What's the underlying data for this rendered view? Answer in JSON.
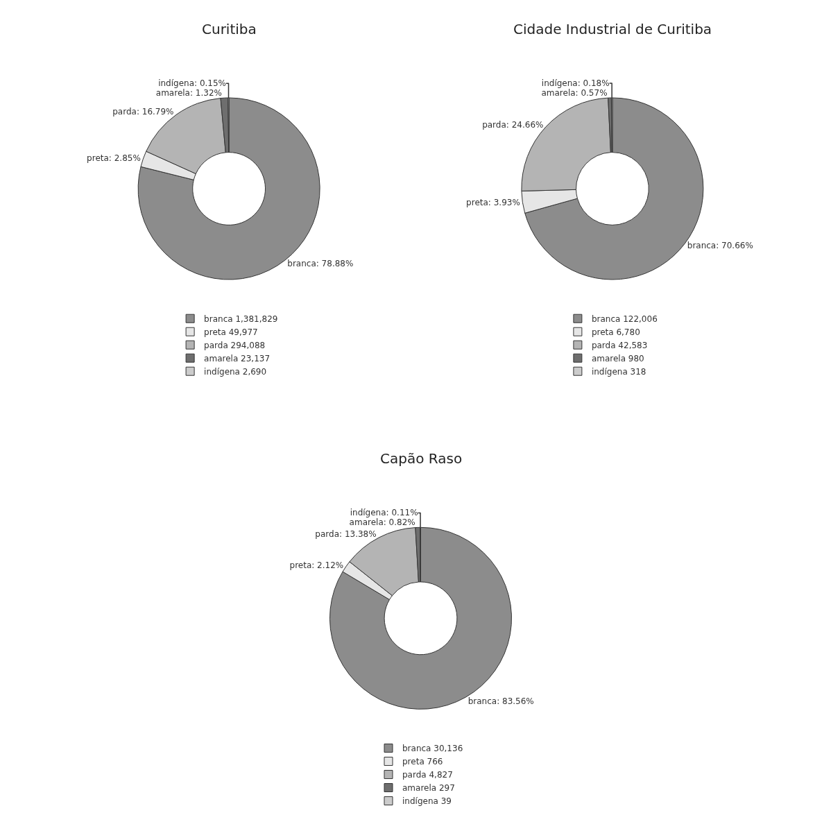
{
  "chart_data": [
    {
      "type": "donut",
      "title": "Curitiba",
      "categories": [
        "branca 1,381,829",
        "preta 49,977",
        "parda 294,088",
        "amarela 23,137",
        "indígena 2,690"
      ],
      "values": [
        78.88,
        2.85,
        16.79,
        1.32,
        0.15
      ],
      "colors": [
        "#8c8c8c",
        "#e6e6e6",
        "#b4b4b4",
        "#6e6e6e",
        "#cccccc"
      ],
      "value_labels": [
        "branca: 78.88%",
        "preta: 2.85%",
        "parda: 16.79%",
        "amarela: 1.32%",
        "indígena: 0.15%"
      ],
      "legend": "bottom"
    },
    {
      "type": "donut",
      "title": "Cidade Industrial de Curitiba",
      "categories": [
        "branca 122,006",
        "preta 6,780",
        "parda 42,583",
        "amarela 980",
        "indígena 318"
      ],
      "values": [
        70.66,
        3.93,
        24.66,
        0.57,
        0.18
      ],
      "colors": [
        "#8c8c8c",
        "#e6e6e6",
        "#b4b4b4",
        "#6e6e6e",
        "#cccccc"
      ],
      "value_labels": [
        "branca: 70.66%",
        "preta: 3.93%",
        "parda: 24.66%",
        "amarela: 0.57%",
        "indígena: 0.18%"
      ],
      "legend": "bottom"
    },
    {
      "type": "donut",
      "title": "Capão Raso",
      "categories": [
        "branca 30,136",
        "preta 766",
        "parda 4,827",
        "amarela 297",
        "indígena 39"
      ],
      "values": [
        83.56,
        2.12,
        13.38,
        0.82,
        0.11
      ],
      "colors": [
        "#8c8c8c",
        "#e6e6e6",
        "#b4b4b4",
        "#6e6e6e",
        "#cccccc"
      ],
      "value_labels": [
        "branca: 83.56%",
        "preta: 2.12%",
        "parda: 13.38%",
        "amarela: 0.82%",
        "indígena: 0.11%"
      ],
      "legend": "bottom"
    }
  ]
}
